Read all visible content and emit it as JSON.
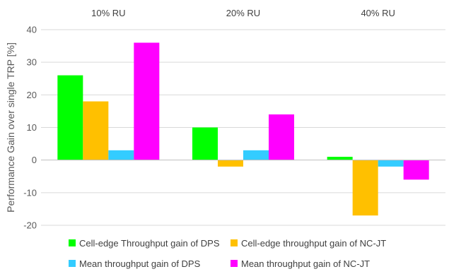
{
  "chart_data": {
    "type": "bar",
    "title": "",
    "xlabel": "",
    "ylabel": "Performance Gain over single TRP [%]",
    "ylim": [
      -20,
      40
    ],
    "yticks": [
      -20,
      -10,
      0,
      10,
      20,
      30,
      40
    ],
    "grid": true,
    "legend_position": "bottom",
    "categories": [
      "10% RU",
      "20% RU",
      "40% RU"
    ],
    "series": [
      {
        "name": "Cell-edge Throughput gain of DPS",
        "color": "#00ff00",
        "values": [
          26,
          10,
          1
        ]
      },
      {
        "name": "Cell-edge throughput gain of NC-JT",
        "color": "#ffc000",
        "values": [
          18,
          -2,
          -17
        ]
      },
      {
        "name": "Mean throughput gain of DPS",
        "color": "#33ccff",
        "values": [
          3,
          3,
          -2
        ]
      },
      {
        "name": "Mean throughput gain of NC-JT",
        "color": "#ff00ff",
        "values": [
          36,
          14,
          -6
        ]
      }
    ]
  }
}
